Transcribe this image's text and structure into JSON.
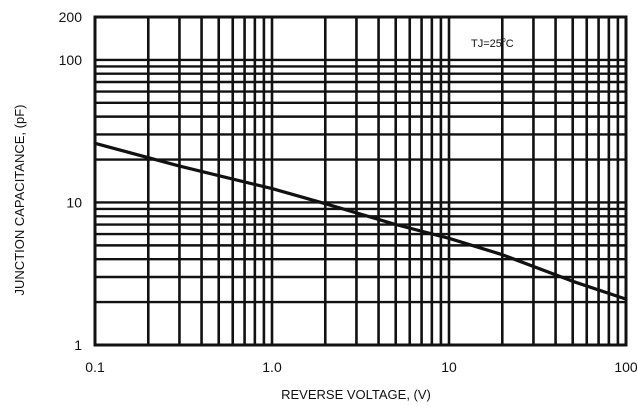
{
  "chart_data": {
    "type": "line",
    "xlabel": "REVERSE VOLTAGE, (V)",
    "ylabel": "JUNCTION CAPACITANCE, (pF)",
    "xscale": "log",
    "yscale": "log",
    "xlim": [
      0.1,
      100
    ],
    "ylim": [
      1,
      200
    ],
    "grid": true,
    "x_ticks": [
      0.1,
      1,
      10,
      100
    ],
    "x_tick_labels": [
      "0.1",
      "1.0",
      "10",
      "100"
    ],
    "y_ticks": [
      1,
      10,
      100,
      200
    ],
    "y_tick_labels": [
      "1",
      "10",
      "100",
      "200"
    ],
    "annotation": {
      "main": "TJ=25",
      "degree": "o",
      "unit": "C"
    },
    "series": [
      {
        "x": [
          0.1,
          0.3,
          1,
          2,
          5,
          10,
          20,
          50,
          100
        ],
        "y": [
          26,
          18,
          12.5,
          9.8,
          7,
          5.6,
          4.3,
          2.8,
          2.1
        ]
      }
    ],
    "colors": {
      "line": "#111111",
      "grid": "#111111",
      "background": "#ffffff"
    }
  }
}
